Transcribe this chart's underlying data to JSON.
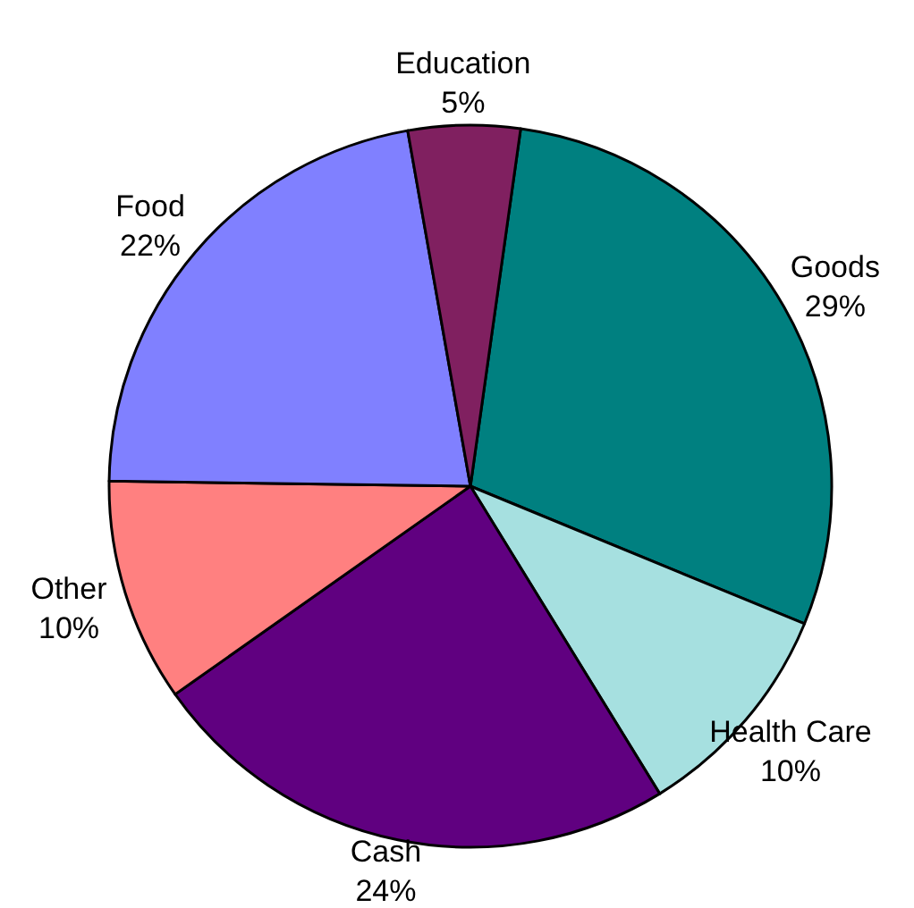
{
  "chart_data": {
    "type": "pie",
    "categories": [
      "Goods",
      "Health Care",
      "Cash",
      "Other",
      "Food",
      "Education"
    ],
    "values": [
      29,
      10,
      24,
      10,
      22,
      5
    ],
    "value_labels": [
      "29%",
      "10%",
      "24%",
      "10%",
      "22%",
      "5%"
    ],
    "colors": [
      "#008080",
      "#a6e0e0",
      "#600080",
      "#ff8080",
      "#8080ff",
      "#802060"
    ]
  }
}
